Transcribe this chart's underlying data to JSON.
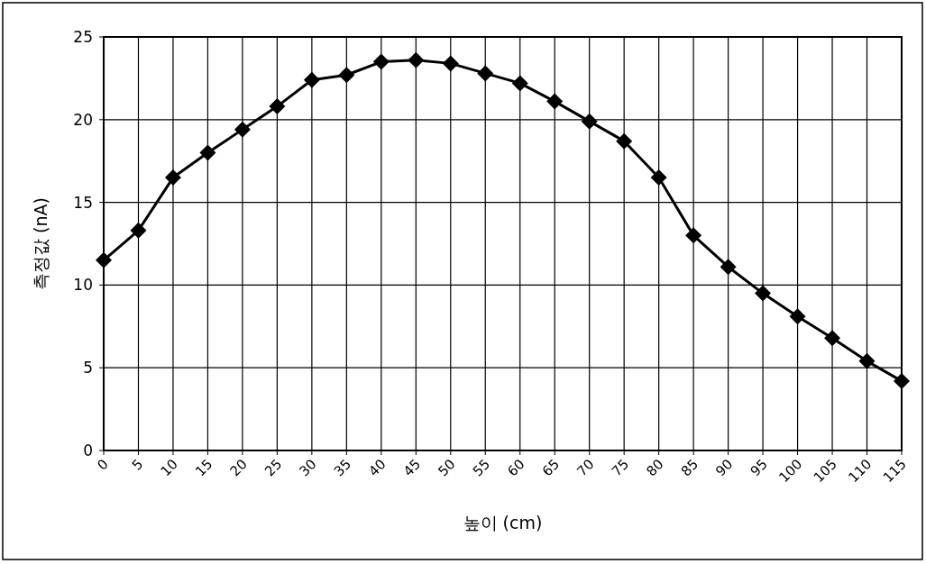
{
  "chart_data": {
    "type": "line",
    "xlabel": "높이 (cm)",
    "ylabel": "측정값 (nA)",
    "categories": [
      "0",
      "5",
      "10",
      "15",
      "20",
      "25",
      "30",
      "35",
      "40",
      "45",
      "50",
      "55",
      "60",
      "65",
      "70",
      "75",
      "80",
      "85",
      "90",
      "95",
      "100",
      "105",
      "110",
      "115"
    ],
    "series": [
      {
        "color": "#000000",
        "values": [
          11.5,
          13.3,
          16.5,
          18.0,
          19.4,
          20.8,
          22.4,
          22.7,
          23.5,
          23.6,
          23.4,
          22.8,
          22.2,
          21.1,
          19.9,
          18.7,
          16.5,
          13.0,
          11.1,
          9.5,
          8.1,
          6.8,
          5.4,
          4.2
        ]
      }
    ],
    "ylim": [
      0,
      25
    ],
    "yticks": [
      0,
      5,
      10,
      15,
      20,
      25
    ],
    "grid": true,
    "marker": "diamond",
    "line_style": "solid"
  }
}
